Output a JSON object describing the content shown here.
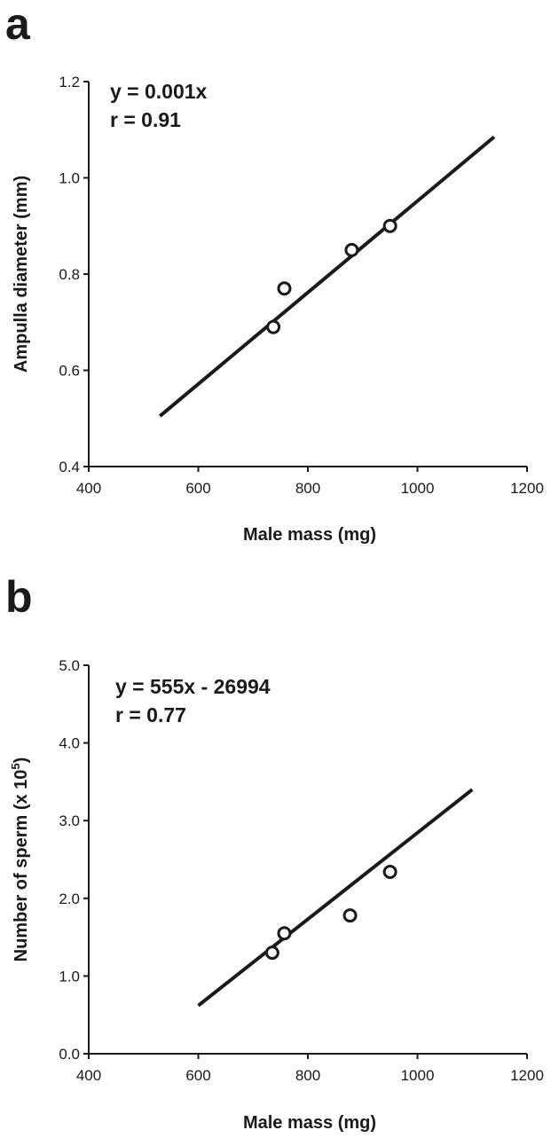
{
  "chart_data": [
    {
      "panel": "a",
      "type": "scatter",
      "xlabel": "Male mass (mg)",
      "ylabel": "Ampulla diameter (mm)",
      "xlim": [
        400,
        1200
      ],
      "ylim": [
        0.4,
        1.2
      ],
      "x_ticks": [
        400,
        600,
        800,
        1000,
        1200
      ],
      "y_ticks": [
        0.4,
        0.6,
        0.8,
        1.0,
        1.2
      ],
      "x_tick_labels": [
        "400",
        "600",
        "800",
        "1000",
        "1200"
      ],
      "y_tick_labels": [
        "0.4",
        "0.6",
        "0.8",
        "1.0",
        "1.2"
      ],
      "annotations": [
        "y = 0.001x",
        "r = 0.91"
      ],
      "points": [
        {
          "x": 737,
          "y": 0.69
        },
        {
          "x": 757,
          "y": 0.77
        },
        {
          "x": 880,
          "y": 0.85
        },
        {
          "x": 950,
          "y": 0.9
        }
      ],
      "fit_line": {
        "x": [
          530,
          1140
        ],
        "y": [
          0.505,
          1.085
        ]
      },
      "grid": false
    },
    {
      "panel": "b",
      "type": "scatter",
      "xlabel": "Male mass (mg)",
      "ylabel": "Number of sperm (x 10",
      "ylabel_superscript": "5",
      "ylabel_suffix": ")",
      "xlim": [
        400,
        1200
      ],
      "ylim": [
        0.0,
        5.0
      ],
      "x_ticks": [
        400,
        600,
        800,
        1000,
        1200
      ],
      "y_ticks": [
        0.0,
        1.0,
        2.0,
        3.0,
        4.0,
        5.0
      ],
      "x_tick_labels": [
        "400",
        "600",
        "800",
        "1000",
        "1200"
      ],
      "y_tick_labels": [
        "0.0",
        "1.0",
        "2.0",
        "3.0",
        "4.0",
        "5.0"
      ],
      "annotations": [
        "y = 555x - 26994",
        "r = 0.77"
      ],
      "points": [
        {
          "x": 735,
          "y": 1.3
        },
        {
          "x": 757,
          "y": 1.55
        },
        {
          "x": 877,
          "y": 1.78
        },
        {
          "x": 950,
          "y": 2.34
        }
      ],
      "fit_line": {
        "x": [
          600,
          1100
        ],
        "y": [
          0.62,
          3.4
        ]
      },
      "grid": false
    }
  ]
}
